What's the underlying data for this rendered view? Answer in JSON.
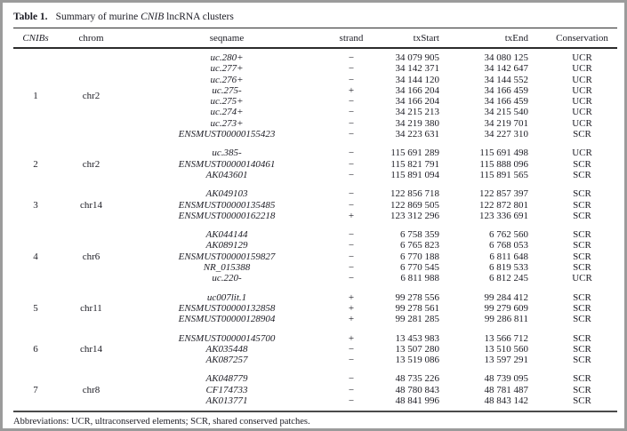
{
  "title": {
    "label": "Table 1.",
    "pre": "Summary of murine ",
    "emphasis": "CNIB",
    "post": " lncRNA clusters"
  },
  "columns": {
    "cnibs": "CNIBs",
    "chrom": "chrom",
    "seqname": "seqname",
    "strand": "strand",
    "txstart": "txStart",
    "txend": "txEnd",
    "conservation": "Conservation"
  },
  "clusters": [
    {
      "id": "1",
      "chrom": "chr2",
      "rows": [
        {
          "seqname": "uc.280+",
          "strand": "−",
          "txStart": "34 079 905",
          "txEnd": "34 080 125",
          "conservation": "UCR"
        },
        {
          "seqname": "uc.277+",
          "strand": "−",
          "txStart": "34 142 371",
          "txEnd": "34 142 647",
          "conservation": "UCR"
        },
        {
          "seqname": "uc.276+",
          "strand": "−",
          "txStart": "34 144 120",
          "txEnd": "34 144 552",
          "conservation": "UCR"
        },
        {
          "seqname": "uc.275-",
          "strand": "+",
          "txStart": "34 166 204",
          "txEnd": "34 166 459",
          "conservation": "UCR"
        },
        {
          "seqname": "uc.275+",
          "strand": "−",
          "txStart": "34 166 204",
          "txEnd": "34 166 459",
          "conservation": "UCR"
        },
        {
          "seqname": "uc.274+",
          "strand": "−",
          "txStart": "34 215 213",
          "txEnd": "34 215 540",
          "conservation": "UCR"
        },
        {
          "seqname": "uc.273+",
          "strand": "−",
          "txStart": "34 219 380",
          "txEnd": "34 219 701",
          "conservation": "UCR"
        },
        {
          "seqname": "ENSMUST00000155423",
          "strand": "−",
          "txStart": "34 223 631",
          "txEnd": "34 227 310",
          "conservation": "SCR"
        }
      ]
    },
    {
      "id": "2",
      "chrom": "chr2",
      "rows": [
        {
          "seqname": "uc.385-",
          "strand": "−",
          "txStart": "115 691 289",
          "txEnd": "115 691 498",
          "conservation": "UCR"
        },
        {
          "seqname": "ENSMUST00000140461",
          "strand": "−",
          "txStart": "115 821 791",
          "txEnd": "115 888 096",
          "conservation": "SCR"
        },
        {
          "seqname": "AK043601",
          "strand": "−",
          "txStart": "115 891 094",
          "txEnd": "115 891 565",
          "conservation": "SCR"
        }
      ]
    },
    {
      "id": "3",
      "chrom": "chr14",
      "rows": [
        {
          "seqname": "AK049103",
          "strand": "−",
          "txStart": "122 856 718",
          "txEnd": "122 857 397",
          "conservation": "SCR"
        },
        {
          "seqname": "ENSMUST00000135485",
          "strand": "−",
          "txStart": "122 869 505",
          "txEnd": "122 872 801",
          "conservation": "SCR"
        },
        {
          "seqname": "ENSMUST00000162218",
          "strand": "+",
          "txStart": "123 312 296",
          "txEnd": "123 336 691",
          "conservation": "SCR"
        }
      ]
    },
    {
      "id": "4",
      "chrom": "chr6",
      "rows": [
        {
          "seqname": "AK044144",
          "strand": "−",
          "txStart": "6 758 359",
          "txEnd": "6 762 560",
          "conservation": "SCR"
        },
        {
          "seqname": "AK089129",
          "strand": "−",
          "txStart": "6 765 823",
          "txEnd": "6 768 053",
          "conservation": "SCR"
        },
        {
          "seqname": "ENSMUST00000159827",
          "strand": "−",
          "txStart": "6 770 188",
          "txEnd": "6 811 648",
          "conservation": "SCR"
        },
        {
          "seqname": "NR_015388",
          "strand": "−",
          "txStart": "6 770 545",
          "txEnd": "6 819 533",
          "conservation": "SCR"
        },
        {
          "seqname": "uc.220-",
          "strand": "−",
          "txStart": "6 811 988",
          "txEnd": "6 812 245",
          "conservation": "UCR"
        }
      ]
    },
    {
      "id": "5",
      "chrom": "chr11",
      "rows": [
        {
          "seqname": "uc007lit.1",
          "strand": "+",
          "txStart": "99 278 556",
          "txEnd": "99 284 412",
          "conservation": "SCR"
        },
        {
          "seqname": "ENSMUST00000132858",
          "strand": "+",
          "txStart": "99 278 561",
          "txEnd": "99 279 609",
          "conservation": "SCR"
        },
        {
          "seqname": "ENSMUST00000128904",
          "strand": "+",
          "txStart": "99 281 285",
          "txEnd": "99 286 811",
          "conservation": "SCR"
        }
      ]
    },
    {
      "id": "6",
      "chrom": "chr14",
      "rows": [
        {
          "seqname": "ENSMUST00000145700",
          "strand": "+",
          "txStart": "13 453 983",
          "txEnd": "13 566 712",
          "conservation": "SCR"
        },
        {
          "seqname": "AK035448",
          "strand": "−",
          "txStart": "13 507 280",
          "txEnd": "13 510 560",
          "conservation": "SCR"
        },
        {
          "seqname": "AK087257",
          "strand": "−",
          "txStart": "13 519 086",
          "txEnd": "13 597 291",
          "conservation": "SCR"
        }
      ]
    },
    {
      "id": "7",
      "chrom": "chr8",
      "rows": [
        {
          "seqname": "AK048779",
          "strand": "−",
          "txStart": "48 735 226",
          "txEnd": "48 739 095",
          "conservation": "SCR"
        },
        {
          "seqname": "CF174733",
          "strand": "−",
          "txStart": "48 780 843",
          "txEnd": "48 781 487",
          "conservation": "SCR"
        },
        {
          "seqname": "AK013771",
          "strand": "−",
          "txStart": "48 841 996",
          "txEnd": "48 843 142",
          "conservation": "SCR"
        }
      ]
    }
  ],
  "footnote": "Abbreviations: UCR, ultraconserved elements; SCR, shared conserved patches."
}
